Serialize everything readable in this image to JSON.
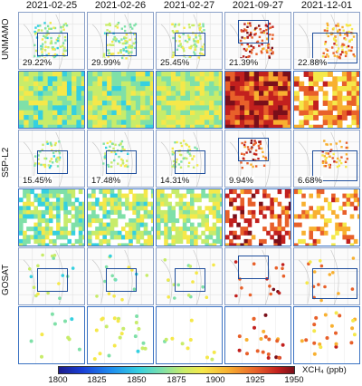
{
  "dates": [
    "2021-02-25",
    "2021-02-26",
    "2021-02-27",
    "2021-09-27",
    "2021-12-01"
  ],
  "rows": [
    {
      "label": "UNMAMO",
      "percents": [
        "29.22%",
        "29.99%",
        "25.45%",
        "21.39%",
        "22.88%"
      ]
    },
    {
      "label": "S5P-L2",
      "percents": [
        "15.45%",
        "17.48%",
        "14.31%",
        "9.94%",
        "6.68%"
      ]
    },
    {
      "label": "GOSAT",
      "percents": [
        "",
        "",
        "",
        "",
        ""
      ]
    }
  ],
  "colorbar": {
    "ticks": [
      "1800",
      "1825",
      "1850",
      "1875",
      "1900",
      "1925",
      "1950"
    ],
    "label": "XCH₄ (ppb)",
    "colors": [
      "#1c1c8c",
      "#1a3fd6",
      "#1e8cf0",
      "#35d0e0",
      "#7fe0a8",
      "#c8ec6a",
      "#f5e84a",
      "#f8b030",
      "#e8602a",
      "#c2201e",
      "#7a0f1a"
    ]
  }
}
